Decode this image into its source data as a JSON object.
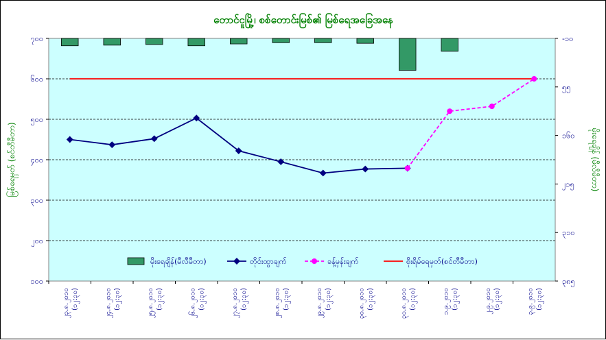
{
  "chart_data": {
    "type": "bar+line",
    "title": "တောင်ငူမြို့၊ စစ်တောင်းမြစ်၏ မြစ်ရေအခြေအနေ",
    "ylabel_left": "မြစ်ရေမှတ် (စင်တီမီတာ)",
    "ylabel_right": "မိုးရေချိန် (မီလီမီတာ)",
    "yleft_ticks": [
      "၁၀၀",
      "၂၀၀",
      "၃၀၀",
      "၄၀၀",
      "၅၀၀",
      "၆၀၀",
      "၇၀၀"
    ],
    "yleft_range": [
      100,
      700
    ],
    "yright_ticks": [
      "-၁၀",
      "၅၅",
      "၁၆၀",
      "၂၁၅",
      "၃၁၀",
      "၃၈၅"
    ],
    "yright_range": [
      -10,
      385
    ],
    "categories": [
      [
        "၂၃.၈.၂၀၁၀",
        "(၁၂:၃၀)"
      ],
      [
        "၂၄.၈.၂၀၁၀",
        "(၁၂:၃၀)"
      ],
      [
        "၂၅.၈.၂၀၁၀",
        "(၁၂:၃၀)"
      ],
      [
        "၂၆.၈.၂၀၁၀",
        "(၁၂:၃၀)"
      ],
      [
        "၂၇.၈.၂၀၁၀",
        "(၁၂:၃၀)"
      ],
      [
        "၂၈.၈.၂၀၁၀",
        "(၁၂:၃၀)"
      ],
      [
        "၂၉.၈.၂၀၁၀",
        "(၁၂:၃၀)"
      ],
      [
        "၃၀.၈.၂၀၁၀",
        "(၁၂:၃၀)"
      ],
      [
        "၃၁.၈.၂၀၁၀",
        "(၁၂:၃၀)"
      ],
      [
        "၁.၉.၂၀၁၀",
        "(၁၂:၃၀)"
      ],
      [
        "၂.၉.၂၀၁၀",
        "(၁၂:၃၀)"
      ],
      [
        "၃.၉.၂၀၁၀",
        "(၁၂:၃၀)"
      ]
    ],
    "series": [
      {
        "name": "မိုးရေချိန်(မီလီမီတာ)",
        "kind": "bar",
        "axis": "right",
        "color": "#339966",
        "values": [
          12,
          11,
          10,
          12,
          9,
          7,
          7,
          8,
          52,
          21,
          null,
          null
        ]
      },
      {
        "name": "တိုင်းထွာချက်",
        "kind": "line",
        "axis": "left",
        "color": "#000080",
        "values": [
          450,
          437,
          452,
          503,
          422,
          395,
          367,
          377,
          379,
          null,
          null,
          null
        ]
      },
      {
        "name": "ခန့်မှန်းချက်",
        "kind": "line-dashed",
        "axis": "left",
        "color": "#FF00FF",
        "values": [
          null,
          null,
          null,
          null,
          null,
          null,
          null,
          null,
          379,
          520,
          532,
          600
        ]
      },
      {
        "name": "စိုးရိမ်ရေမှတ်(စင်တီမီတာ)",
        "kind": "hline",
        "axis": "left",
        "color": "#FF0000",
        "value": 600
      }
    ],
    "grid": "horizontal-dashed",
    "plot_background": "#CCFFFF",
    "legend_position": "bottom-inside"
  }
}
